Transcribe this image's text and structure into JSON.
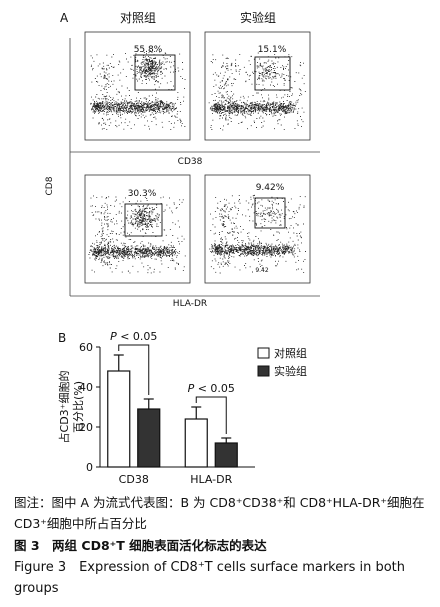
{
  "panel_a": {
    "label": "A",
    "columns": [
      "对照组",
      "实验组"
    ],
    "x_labels": [
      "CD38",
      "HLA-DR"
    ],
    "y_label": "CD8",
    "gates": [
      "55.8%",
      "15.1%",
      "30.3%",
      "9.42%"
    ],
    "plot_note": "9.42"
  },
  "chart_data": {
    "type": "bar",
    "panel_label": "B",
    "ylabel": [
      "占CD3⁺细胞的",
      "百分比(%)"
    ],
    "categories": [
      "CD38",
      "HLA-DR"
    ],
    "series": [
      {
        "name": "对照组",
        "color": "#ffffff",
        "values": [
          48,
          24
        ],
        "errors": [
          8,
          6
        ]
      },
      {
        "name": "实验组",
        "color": "#333333",
        "values": [
          29,
          12
        ],
        "errors": [
          5,
          2.5
        ]
      }
    ],
    "annotations": [
      "P < 0.05",
      "P < 0.05"
    ],
    "ylim": [
      0,
      60
    ],
    "yticks": [
      0,
      20,
      40,
      60
    ],
    "legend": "upper right"
  },
  "caption": {
    "note": "图注：图中 A 为流式代表图：B 为 CD8⁺CD38⁺和 CD8⁺HLA-DR⁺细胞在 CD3⁺细胞中所占百分比",
    "title_cn": "图 3　两组 CD8⁺T 细胞表面活化标志的表达",
    "title_en": "Figure 3　Expression of CD8⁺T cells surface markers in both groups"
  }
}
